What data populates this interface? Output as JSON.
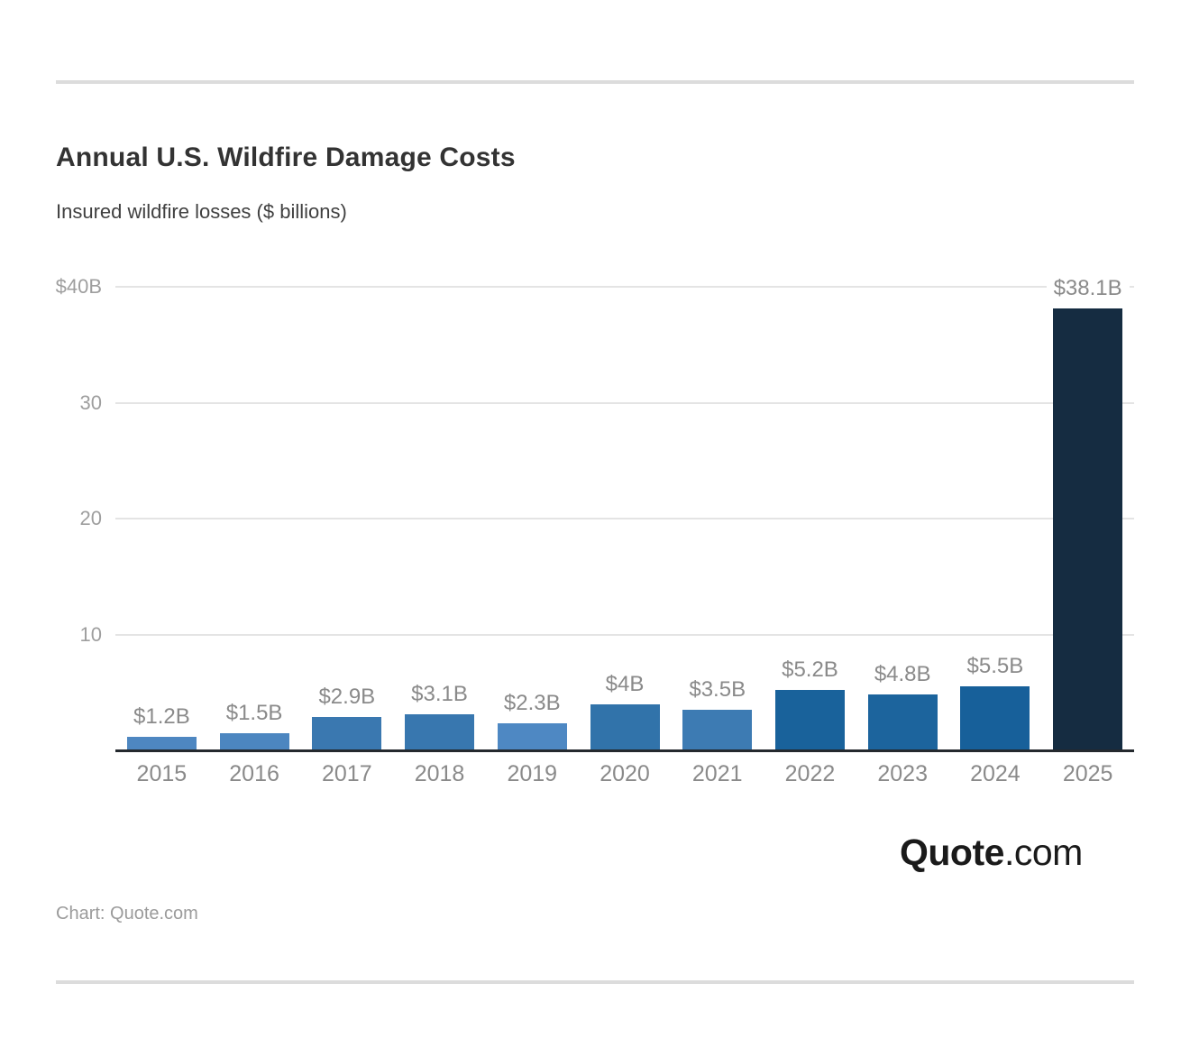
{
  "header": {
    "title": "Annual U.S. Wildfire Damage Costs",
    "subtitle": "Insured wildfire losses ($ billions)"
  },
  "chart_data": {
    "type": "bar",
    "title": "Annual U.S. Wildfire Damage Costs",
    "subtitle": "Insured wildfire losses ($ billions)",
    "categories": [
      "2015",
      "2016",
      "2017",
      "2018",
      "2019",
      "2020",
      "2021",
      "2022",
      "2023",
      "2024",
      "2025"
    ],
    "values": [
      1.2,
      1.5,
      2.9,
      3.1,
      2.3,
      4.0,
      3.5,
      5.2,
      4.8,
      5.5,
      38.1
    ],
    "value_labels": [
      "$1.2B",
      "$1.5B",
      "$2.9B",
      "$3.1B",
      "$2.3B",
      "$4B",
      "$3.5B",
      "$5.2B",
      "$4.8B",
      "$5.5B",
      "$38.1B"
    ],
    "bar_colors": [
      "#4e87c1",
      "#4c86c0",
      "#3a78b0",
      "#3877af",
      "#4e88c3",
      "#3173aa",
      "#3d7bb3",
      "#19629b",
      "#1c649d",
      "#17609a",
      "#152c41"
    ],
    "xlabel": "",
    "ylabel": "",
    "ylim": [
      0,
      40
    ],
    "yticks": [
      {
        "value": 10,
        "label": "10"
      },
      {
        "value": 20,
        "label": "20"
      },
      {
        "value": 30,
        "label": "30"
      },
      {
        "value": 40,
        "label": "$40B"
      }
    ],
    "grid": true,
    "legend": false,
    "gridline_color": "#e4e4e4",
    "axis_line_color": "#24292e"
  },
  "branding": {
    "logo_bold": "Quote",
    "logo_light": ".com",
    "attribution": "Chart: Quote.com"
  }
}
